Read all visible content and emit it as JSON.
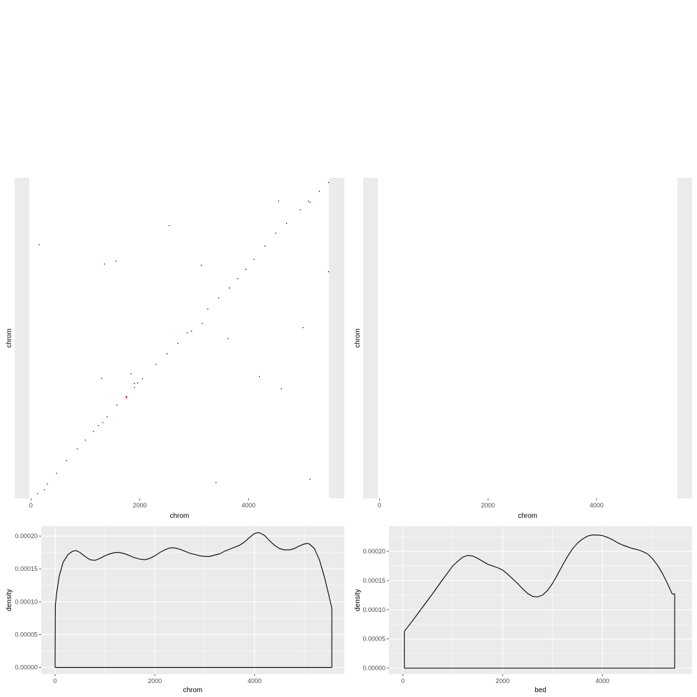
{
  "colors": {
    "panel_background": "#ebebeb",
    "grid": "#ffffff",
    "line": "#000000",
    "dot_main": "#000000",
    "dot_accent": "#cc0000"
  },
  "chart_data": [
    {
      "id": "scatter-left",
      "type": "scatter",
      "xlabel": "chrom",
      "ylabel": "chrom",
      "xlim": [
        -300,
        5760
      ],
      "ylim": [
        0,
        5500
      ],
      "x_ticks": [
        0,
        2000,
        4000
      ],
      "x_tick_labels": [
        "0",
        "2000",
        "4000"
      ],
      "y_ticks": [],
      "grid": false,
      "points": [
        {
          "x": 120,
          "y": 80
        },
        {
          "x": 250,
          "y": 150
        },
        {
          "x": 300,
          "y": 250
        },
        {
          "x": 470,
          "y": 430
        },
        {
          "x": 650,
          "y": 650
        },
        {
          "x": 850,
          "y": 850
        },
        {
          "x": 1000,
          "y": 1000
        },
        {
          "x": 1150,
          "y": 1150
        },
        {
          "x": 1240,
          "y": 1250
        },
        {
          "x": 1400,
          "y": 1400
        },
        {
          "x": 1580,
          "y": 1600
        },
        {
          "x": 1750,
          "y": 1750
        },
        {
          "x": 1900,
          "y": 1900
        },
        {
          "x": 2050,
          "y": 2050
        },
        {
          "x": 2300,
          "y": 2300
        },
        {
          "x": 2500,
          "y": 2480
        },
        {
          "x": 2700,
          "y": 2660
        },
        {
          "x": 2950,
          "y": 2870
        },
        {
          "x": 3150,
          "y": 3000
        },
        {
          "x": 3250,
          "y": 3250
        },
        {
          "x": 3450,
          "y": 3440
        },
        {
          "x": 3650,
          "y": 3610
        },
        {
          "x": 3800,
          "y": 3770
        },
        {
          "x": 3950,
          "y": 3930
        },
        {
          "x": 4100,
          "y": 4100
        },
        {
          "x": 4300,
          "y": 4330
        },
        {
          "x": 4500,
          "y": 4550
        },
        {
          "x": 4700,
          "y": 4720
        },
        {
          "x": 4950,
          "y": 4950
        },
        {
          "x": 5100,
          "y": 5100
        },
        {
          "x": 5300,
          "y": 5270
        },
        {
          "x": 5470,
          "y": 5420
        },
        {
          "x": 150,
          "y": 4350
        },
        {
          "x": 1350,
          "y": 4020
        },
        {
          "x": 1560,
          "y": 4070
        },
        {
          "x": 2540,
          "y": 4680
        },
        {
          "x": 3130,
          "y": 4000
        },
        {
          "x": 4550,
          "y": 5100
        },
        {
          "x": 5470,
          "y": 3890
        },
        {
          "x": 5000,
          "y": 2930
        },
        {
          "x": 3620,
          "y": 2740
        },
        {
          "x": 4200,
          "y": 2090
        },
        {
          "x": 4600,
          "y": 1880
        },
        {
          "x": 1300,
          "y": 2060
        },
        {
          "x": 1840,
          "y": 2140
        },
        {
          "x": 1960,
          "y": 1980
        },
        {
          "x": 1900,
          "y": 1970
        },
        {
          "x": 3400,
          "y": 270
        },
        {
          "x": 5130,
          "y": 330
        },
        {
          "x": 3650,
          "y": 3610
        }
      ],
      "accent_points": [
        {
          "x": 1750,
          "y": 1720
        },
        {
          "x": 1760,
          "y": 1740
        },
        {
          "x": 2870,
          "y": 2840
        },
        {
          "x": 5130,
          "y": 5080
        },
        {
          "x": 1320,
          "y": 1300
        }
      ]
    },
    {
      "id": "scatter-right",
      "type": "scatter",
      "xlabel": "chrom",
      "ylabel": "chrom",
      "xlim": [
        -300,
        5760
      ],
      "ylim": [
        0,
        5500
      ],
      "x_ticks": [
        0,
        2000,
        4000
      ],
      "x_tick_labels": [
        "0",
        "2000",
        "4000"
      ],
      "y_ticks": [],
      "grid": false,
      "points": []
    },
    {
      "id": "density-left",
      "type": "line",
      "xlabel": "chrom",
      "ylabel": "density",
      "xlim": [
        -280,
        5800
      ],
      "ylim": [
        -1e-05,
        0.000215
      ],
      "x_ticks": [
        0,
        2000,
        4000
      ],
      "x_tick_labels": [
        "0",
        "2000",
        "4000"
      ],
      "y_ticks": [
        0,
        5e-05,
        0.0001,
        0.00015,
        0.0002
      ],
      "y_tick_labels": [
        "0.00000",
        "0.00005",
        "0.00010",
        "0.00015",
        "0.00020"
      ],
      "grid": true,
      "x": [
        0,
        5,
        30,
        80,
        160,
        260,
        350,
        420,
        500,
        600,
        700,
        800,
        900,
        1000,
        1100,
        1200,
        1300,
        1400,
        1500,
        1600,
        1700,
        1800,
        1900,
        2000,
        2100,
        2200,
        2300,
        2400,
        2500,
        2600,
        2700,
        2800,
        2900,
        3000,
        3100,
        3200,
        3300,
        3400,
        3500,
        3600,
        3700,
        3800,
        3900,
        4000,
        4050,
        4100,
        4200,
        4300,
        4400,
        4500,
        4600,
        4700,
        4800,
        4900,
        5000,
        5050,
        5100,
        5200,
        5300,
        5400,
        5480,
        5550,
        5550
      ],
      "y": [
        0,
        9.5e-05,
        0.000112,
        0.000138,
        0.00016,
        0.000172,
        0.000177,
        0.000178,
        0.000175,
        0.000169,
        0.000164,
        0.000163,
        0.000166,
        0.00017,
        0.000173,
        0.000175,
        0.000175,
        0.000173,
        0.00017,
        0.000167,
        0.000165,
        0.000164,
        0.000166,
        0.00017,
        0.000175,
        0.000179,
        0.000182,
        0.000182,
        0.00018,
        0.000177,
        0.000174,
        0.000172,
        0.00017,
        0.000169,
        0.000169,
        0.000171,
        0.000173,
        0.000177,
        0.00018,
        0.000183,
        0.000186,
        0.000191,
        0.000198,
        0.000204,
        0.000205,
        0.000205,
        0.000201,
        0.000193,
        0.000186,
        0.000181,
        0.000179,
        0.000179,
        0.000181,
        0.000185,
        0.000188,
        0.000189,
        0.000188,
        0.000181,
        0.000164,
        0.000138,
        0.000113,
        9e-05,
        0
      ]
    },
    {
      "id": "density-right",
      "type": "line",
      "xlabel": "bed",
      "ylabel": "density",
      "xlim": [
        -280,
        5800
      ],
      "ylim": [
        -1e-05,
        0.000243
      ],
      "x_ticks": [
        0,
        2000,
        4000
      ],
      "x_tick_labels": [
        "0",
        "2000",
        "4000"
      ],
      "y_ticks": [
        0,
        5e-05,
        0.0001,
        0.00015,
        0.0002
      ],
      "y_tick_labels": [
        "0.00000",
        "0.00005",
        "0.00010",
        "0.00015",
        "0.00020"
      ],
      "grid": true,
      "x": [
        30,
        30,
        200,
        400,
        600,
        800,
        1000,
        1100,
        1200,
        1300,
        1400,
        1500,
        1600,
        1700,
        1800,
        1900,
        2000,
        2100,
        2200,
        2300,
        2400,
        2500,
        2600,
        2700,
        2800,
        2900,
        3000,
        3100,
        3200,
        3300,
        3400,
        3500,
        3600,
        3700,
        3800,
        3900,
        4000,
        4100,
        4200,
        4300,
        4400,
        4500,
        4600,
        4700,
        4800,
        4900,
        5000,
        5100,
        5200,
        5300,
        5400,
        5450,
        5450
      ],
      "y": [
        0,
        6.3e-05,
        8.2e-05,
        0.000105,
        0.000128,
        0.000152,
        0.000175,
        0.000183,
        0.00019,
        0.000193,
        0.000192,
        0.000188,
        0.000183,
        0.000178,
        0.000175,
        0.000172,
        0.000168,
        0.000161,
        0.000153,
        0.000145,
        0.000136,
        0.000128,
        0.000123,
        0.000122,
        0.000125,
        0.000133,
        0.000145,
        0.00016,
        0.000176,
        0.000191,
        0.000204,
        0.000214,
        0.000221,
        0.000226,
        0.000228,
        0.000228,
        0.000227,
        0.000224,
        0.00022,
        0.000215,
        0.000211,
        0.000208,
        0.000205,
        0.000203,
        0.0002,
        0.000196,
        0.000188,
        0.000177,
        0.000163,
        0.000146,
        0.000127,
        0.000127,
        0
      ]
    }
  ]
}
